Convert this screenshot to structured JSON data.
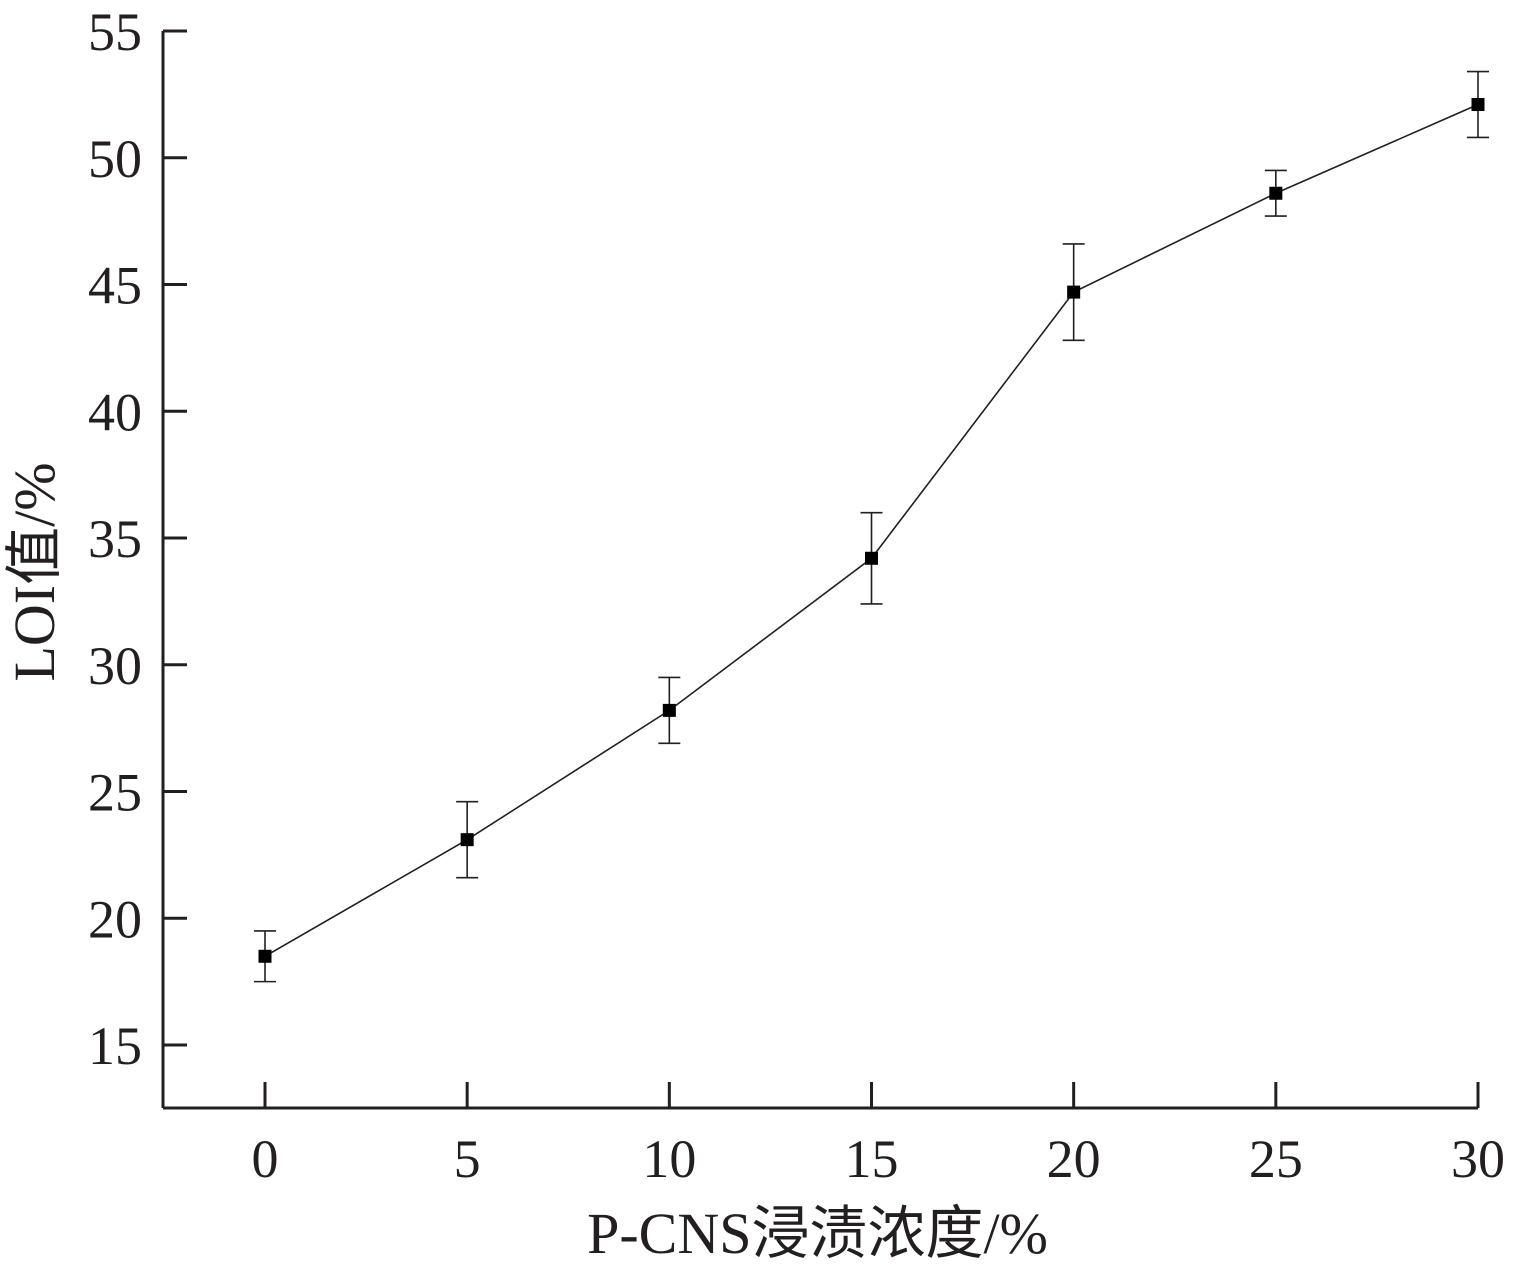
{
  "chart_data": {
    "type": "line",
    "title": "",
    "xlabel": "P-CNS浸渍浓度/%",
    "ylabel": "LOI值/%",
    "xlim": [
      -5,
      30
    ],
    "ylim": [
      12.5,
      55
    ],
    "x_ticks": [
      0,
      5,
      10,
      15,
      20,
      25,
      30
    ],
    "x_tick_labels": [
      "0",
      "5",
      "10",
      "15",
      "20",
      "25",
      "30"
    ],
    "y_ticks": [
      15,
      20,
      25,
      30,
      35,
      40,
      45,
      50,
      55
    ],
    "y_tick_labels": [
      "15",
      "20",
      "25",
      "30",
      "35",
      "40",
      "45",
      "50",
      "55"
    ],
    "grid": false,
    "legend": "none",
    "marker": "square",
    "colors": {
      "line": "#231f20",
      "axis": "#231f20"
    },
    "series": [
      {
        "x": [
          0,
          5,
          10,
          15,
          20,
          25,
          30
        ],
        "y": [
          18.5,
          23.1,
          28.2,
          34.2,
          44.7,
          48.6,
          52.1
        ],
        "error": [
          1.0,
          1.5,
          1.3,
          1.8,
          1.9,
          0.9,
          1.3
        ]
      }
    ]
  }
}
